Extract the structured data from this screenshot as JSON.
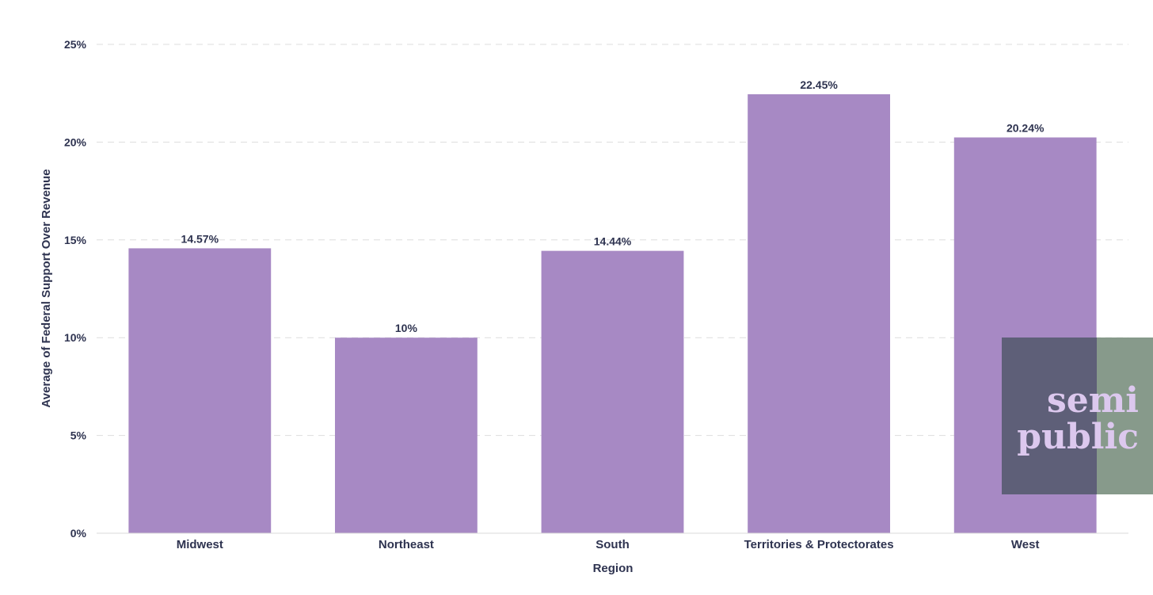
{
  "chart_data": {
    "type": "bar",
    "categories": [
      "Midwest",
      "Northeast",
      "South",
      "Territories & Protectorates",
      "West"
    ],
    "values": [
      14.57,
      10,
      14.44,
      22.45,
      20.24
    ],
    "data_labels": [
      "14.57%",
      "10%",
      "14.44%",
      "22.45%",
      "20.24%"
    ],
    "xlabel": "Region",
    "ylabel": "Average of Federal Support Over Revenue",
    "ylim": [
      0,
      25
    ],
    "yticks": [
      0,
      5,
      10,
      15,
      20,
      25
    ],
    "ytick_labels": [
      "0%",
      "5%",
      "10%",
      "15%",
      "20%",
      "25%"
    ],
    "grid": true,
    "bar_color": "#a789c4"
  },
  "logo": {
    "line1": "semi",
    "line2": "public",
    "color_left": "#5e5f78",
    "color_right": "#879a8b",
    "text_color": "#dcc8ee"
  }
}
